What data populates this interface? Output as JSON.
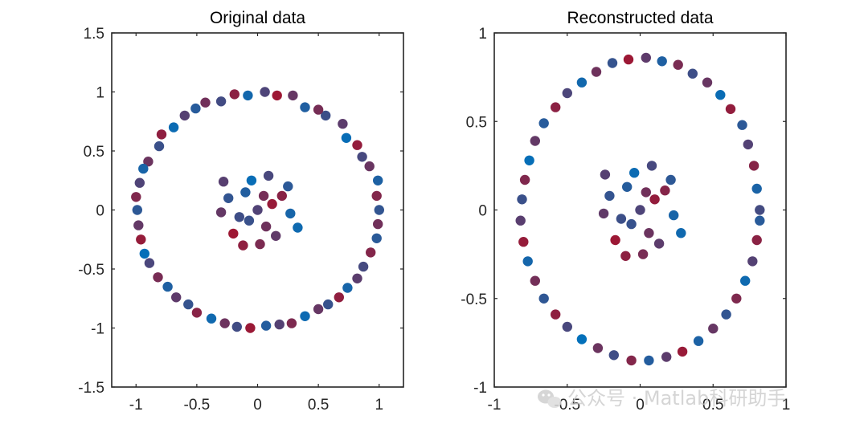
{
  "colors": {
    "blue": "#0072BD",
    "crimson": "#A2142F",
    "axis": "#262626",
    "watermark": "#c8c8c8"
  },
  "watermark": {
    "text": "公众号 · Matlab科研助手",
    "icon": "wechat-icon"
  },
  "chart_data": [
    {
      "type": "scatter",
      "title": "Original data",
      "xlabel": "",
      "ylabel": "",
      "xlim": [
        -1.2,
        1.2
      ],
      "ylim": [
        -1.5,
        1.5
      ],
      "xticks": [
        -1,
        -0.5,
        0,
        0.5,
        1
      ],
      "xtick_labels": [
        "-1",
        "-0.5",
        "0",
        "0.5",
        "1"
      ],
      "yticks": [
        -1.5,
        -1,
        -0.5,
        0,
        0.5,
        1,
        1.5
      ],
      "ytick_labels": [
        "-1.5",
        "-1",
        "-0.5",
        "0",
        "0.5",
        "1",
        "1.5"
      ],
      "grid": false,
      "box": true,
      "color_map": "points colored by t, 0 = blue (#0072BD) to 1 = crimson (#A2142F)",
      "series": [
        {
          "name": "outer ring",
          "points": [
            [
              1.0,
              0.0,
              0.31
            ],
            [
              0.98,
              0.12,
              0.8
            ],
            [
              0.99,
              0.25,
              0.18
            ],
            [
              0.92,
              0.37,
              0.65
            ],
            [
              0.86,
              0.45,
              0.44
            ],
            [
              0.82,
              0.55,
              0.91
            ],
            [
              0.73,
              0.61,
              0.05
            ],
            [
              0.7,
              0.73,
              0.57
            ],
            [
              0.56,
              0.8,
              0.37
            ],
            [
              0.5,
              0.85,
              0.73
            ],
            [
              0.39,
              0.87,
              0.2
            ],
            [
              0.29,
              0.97,
              0.63
            ],
            [
              0.16,
              0.97,
              0.97
            ],
            [
              0.06,
              1.0,
              0.48
            ],
            [
              -0.08,
              0.97,
              0.12
            ],
            [
              -0.19,
              0.98,
              0.86
            ],
            [
              -0.3,
              0.92,
              0.41
            ],
            [
              -0.43,
              0.91,
              0.7
            ],
            [
              -0.51,
              0.86,
              0.24
            ],
            [
              -0.6,
              0.8,
              0.53
            ],
            [
              -0.69,
              0.7,
              0.07
            ],
            [
              -0.79,
              0.64,
              0.88
            ],
            [
              -0.81,
              0.54,
              0.36
            ],
            [
              -0.9,
              0.41,
              0.66
            ],
            [
              -0.94,
              0.35,
              0.15
            ],
            [
              -0.97,
              0.23,
              0.49
            ],
            [
              -1.0,
              0.11,
              0.79
            ],
            [
              -0.99,
              0.0,
              0.28
            ],
            [
              -0.98,
              -0.13,
              0.61
            ],
            [
              -0.96,
              -0.25,
              0.92
            ],
            [
              -0.93,
              -0.37,
              0.03
            ],
            [
              -0.89,
              -0.45,
              0.46
            ],
            [
              -0.82,
              -0.57,
              0.74
            ],
            [
              -0.74,
              -0.65,
              0.19
            ],
            [
              -0.67,
              -0.74,
              0.58
            ],
            [
              -0.57,
              -0.8,
              0.33
            ],
            [
              -0.5,
              -0.87,
              0.84
            ],
            [
              -0.38,
              -0.92,
              0.1
            ],
            [
              -0.27,
              -0.96,
              0.67
            ],
            [
              -0.17,
              -0.99,
              0.4
            ],
            [
              -0.06,
              -1.0,
              0.95
            ],
            [
              0.07,
              -0.98,
              0.22
            ],
            [
              0.18,
              -0.97,
              0.52
            ],
            [
              0.28,
              -0.96,
              0.77
            ],
            [
              0.39,
              -0.9,
              0.08
            ],
            [
              0.5,
              -0.84,
              0.63
            ],
            [
              0.58,
              -0.8,
              0.34
            ],
            [
              0.67,
              -0.74,
              0.89
            ],
            [
              0.74,
              -0.66,
              0.14
            ],
            [
              0.82,
              -0.58,
              0.56
            ],
            [
              0.87,
              -0.48,
              0.43
            ],
            [
              0.93,
              -0.36,
              0.81
            ],
            [
              0.98,
              -0.24,
              0.26
            ],
            [
              0.99,
              -0.12,
              0.7
            ]
          ]
        },
        {
          "name": "inner cluster",
          "points": [
            [
              0.0,
              0.0,
              0.5
            ],
            [
              0.12,
              0.05,
              0.93
            ],
            [
              -0.1,
              0.15,
              0.21
            ],
            [
              0.07,
              -0.14,
              0.68
            ],
            [
              -0.15,
              -0.06,
              0.38
            ],
            [
              0.2,
              0.12,
              0.84
            ],
            [
              -0.05,
              0.25,
              0.05
            ],
            [
              0.15,
              -0.22,
              0.59
            ],
            [
              -0.24,
              0.1,
              0.31
            ],
            [
              0.02,
              -0.29,
              0.76
            ],
            [
              0.27,
              -0.03,
              0.14
            ],
            [
              -0.2,
              -0.2,
              0.97
            ],
            [
              0.09,
              0.29,
              0.45
            ],
            [
              -0.3,
              -0.02,
              0.62
            ],
            [
              0.25,
              0.2,
              0.27
            ],
            [
              -0.12,
              -0.3,
              0.88
            ],
            [
              0.33,
              -0.15,
              0.09
            ],
            [
              -0.28,
              0.24,
              0.54
            ],
            [
              0.05,
              0.12,
              0.72
            ],
            [
              -0.07,
              -0.09,
              0.35
            ]
          ]
        }
      ]
    },
    {
      "type": "scatter",
      "title": "Reconstructed data",
      "xlabel": "",
      "ylabel": "",
      "xlim": [
        -1,
        1
      ],
      "ylim": [
        -1,
        1
      ],
      "xticks": [
        -1,
        -0.5,
        0,
        0.5,
        1
      ],
      "xtick_labels": [
        "-1",
        "-0.5",
        "0",
        "0.5",
        "1"
      ],
      "yticks": [
        -1,
        -0.5,
        0,
        0.5,
        1
      ],
      "ytick_labels": [
        "-1",
        "-0.5",
        "0",
        "0.5",
        "1"
      ],
      "grid": false,
      "box": true,
      "color_map": "points colored by t, 0 = blue (#0072BD) to 1 = crimson (#A2142F)",
      "series": [
        {
          "name": "outer ring",
          "points": [
            [
              0.82,
              0.0,
              0.42
            ],
            [
              0.8,
              0.12,
              0.16
            ],
            [
              0.78,
              0.25,
              0.83
            ],
            [
              0.74,
              0.37,
              0.51
            ],
            [
              0.7,
              0.48,
              0.27
            ],
            [
              0.62,
              0.57,
              0.9
            ],
            [
              0.55,
              0.65,
              0.06
            ],
            [
              0.46,
              0.72,
              0.64
            ],
            [
              0.36,
              0.77,
              0.38
            ],
            [
              0.26,
              0.82,
              0.75
            ],
            [
              0.15,
              0.84,
              0.19
            ],
            [
              0.04,
              0.86,
              0.58
            ],
            [
              -0.08,
              0.85,
              0.96
            ],
            [
              -0.19,
              0.83,
              0.33
            ],
            [
              -0.3,
              0.78,
              0.68
            ],
            [
              -0.4,
              0.72,
              0.11
            ],
            [
              -0.5,
              0.66,
              0.47
            ],
            [
              -0.58,
              0.58,
              0.86
            ],
            [
              -0.66,
              0.49,
              0.24
            ],
            [
              -0.72,
              0.39,
              0.61
            ],
            [
              -0.76,
              0.28,
              0.04
            ],
            [
              -0.79,
              0.17,
              0.79
            ],
            [
              -0.81,
              0.06,
              0.36
            ],
            [
              -0.82,
              -0.06,
              0.55
            ],
            [
              -0.8,
              -0.18,
              0.92
            ],
            [
              -0.77,
              -0.29,
              0.13
            ],
            [
              -0.72,
              -0.4,
              0.71
            ],
            [
              -0.66,
              -0.5,
              0.29
            ],
            [
              -0.58,
              -0.59,
              0.88
            ],
            [
              -0.5,
              -0.66,
              0.45
            ],
            [
              -0.4,
              -0.73,
              0.02
            ],
            [
              -0.29,
              -0.78,
              0.66
            ],
            [
              -0.18,
              -0.82,
              0.39
            ],
            [
              -0.06,
              -0.85,
              0.81
            ],
            [
              0.06,
              -0.85,
              0.22
            ],
            [
              0.18,
              -0.83,
              0.57
            ],
            [
              0.29,
              -0.8,
              0.94
            ],
            [
              0.4,
              -0.74,
              0.17
            ],
            [
              0.5,
              -0.67,
              0.63
            ],
            [
              0.59,
              -0.59,
              0.31
            ],
            [
              0.66,
              -0.5,
              0.78
            ],
            [
              0.72,
              -0.4,
              0.09
            ],
            [
              0.77,
              -0.29,
              0.52
            ],
            [
              0.8,
              -0.17,
              0.85
            ],
            [
              0.82,
              -0.06,
              0.25
            ]
          ]
        },
        {
          "name": "inner cluster",
          "points": [
            [
              0.0,
              0.0,
              0.48
            ],
            [
              0.1,
              0.06,
              0.91
            ],
            [
              -0.09,
              0.13,
              0.23
            ],
            [
              0.06,
              -0.13,
              0.66
            ],
            [
              -0.13,
              -0.05,
              0.37
            ],
            [
              0.17,
              0.11,
              0.82
            ],
            [
              -0.04,
              0.21,
              0.07
            ],
            [
              0.13,
              -0.19,
              0.57
            ],
            [
              -0.21,
              0.08,
              0.32
            ],
            [
              0.02,
              -0.25,
              0.74
            ],
            [
              0.23,
              -0.03,
              0.15
            ],
            [
              -0.17,
              -0.17,
              0.96
            ],
            [
              0.08,
              0.25,
              0.44
            ],
            [
              -0.25,
              -0.02,
              0.6
            ],
            [
              0.21,
              0.17,
              0.28
            ],
            [
              -0.1,
              -0.26,
              0.87
            ],
            [
              0.28,
              -0.13,
              0.1
            ],
            [
              -0.24,
              0.2,
              0.53
            ],
            [
              0.04,
              0.1,
              0.7
            ],
            [
              -0.06,
              -0.08,
              0.34
            ]
          ]
        }
      ]
    }
  ]
}
